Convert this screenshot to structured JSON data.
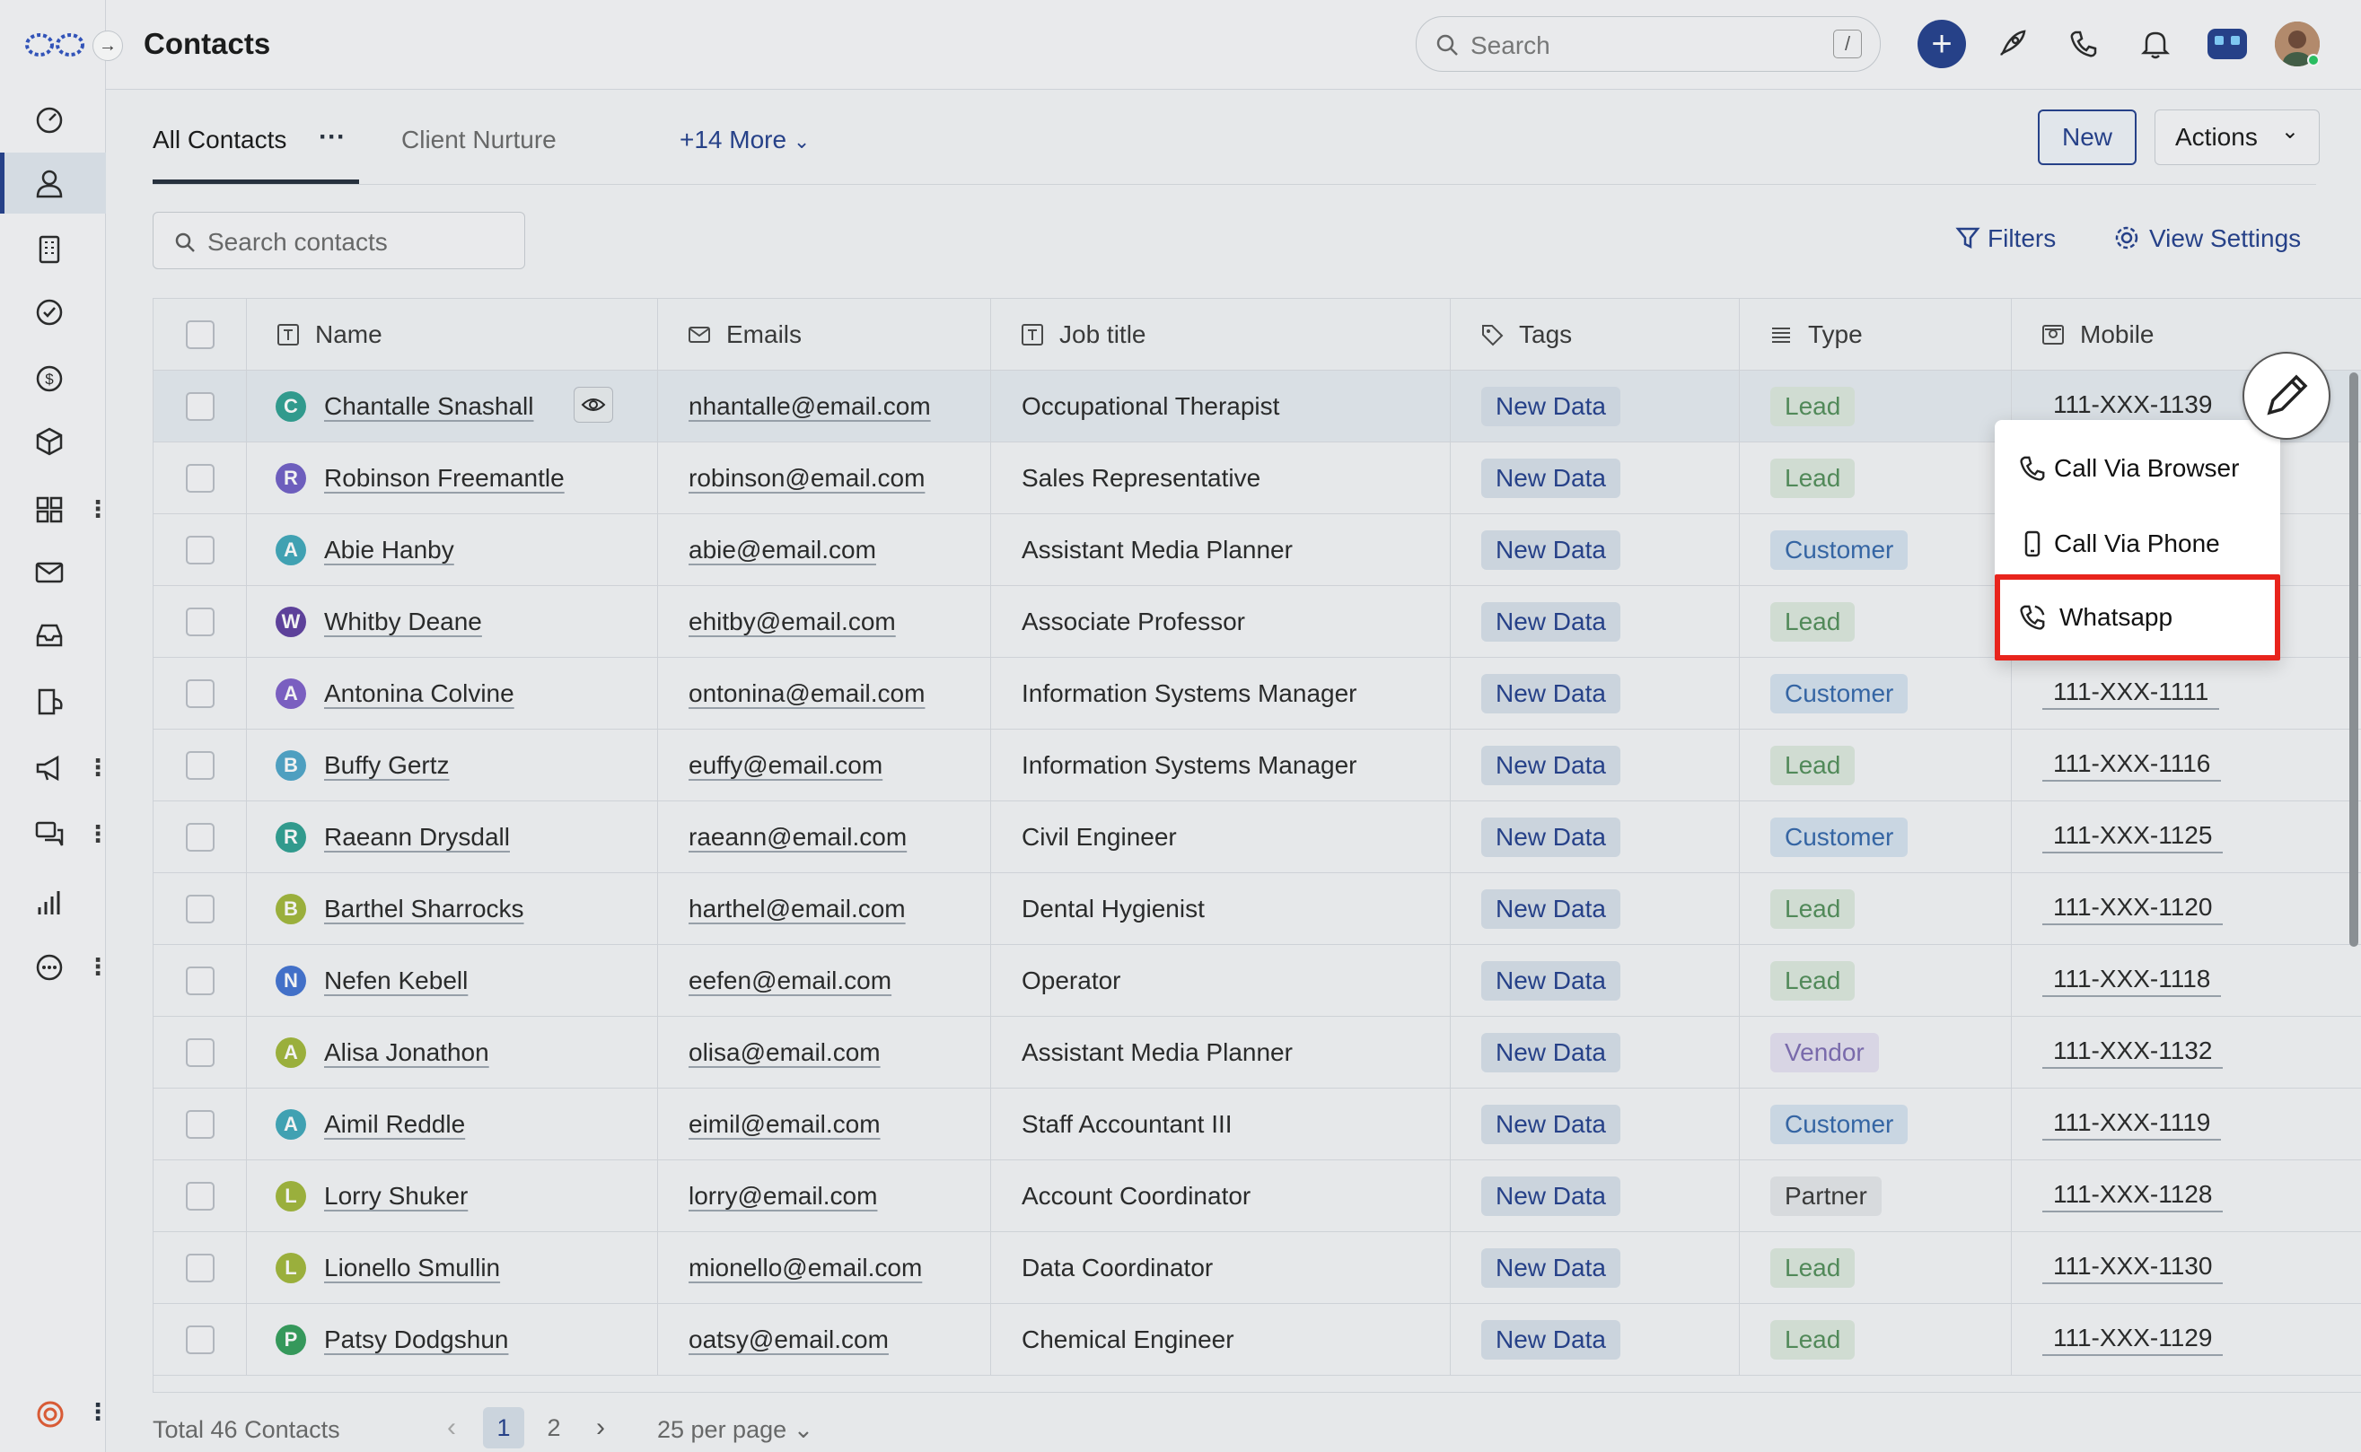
{
  "app": {
    "page_title": "Contacts"
  },
  "search": {
    "placeholder": "Search",
    "shortcut": "/"
  },
  "sidebar": {
    "items": [
      {
        "icon": "dashboard-icon"
      },
      {
        "icon": "contacts-icon",
        "active": true
      },
      {
        "icon": "building-icon"
      },
      {
        "icon": "check-circle-icon"
      },
      {
        "icon": "dollar-icon"
      },
      {
        "icon": "cube-icon"
      },
      {
        "icon": "apps-icon",
        "menu": true
      },
      {
        "icon": "mail-icon"
      },
      {
        "icon": "inbox-icon"
      },
      {
        "icon": "forms-icon"
      },
      {
        "icon": "megaphone-icon",
        "menu": true
      },
      {
        "icon": "chat-icon",
        "menu": true
      },
      {
        "icon": "reports-icon"
      },
      {
        "icon": "more-icon",
        "menu": true
      }
    ]
  },
  "tabs": {
    "all": "All Contacts",
    "client": "Client Nurture",
    "more": "+14 More"
  },
  "buttons": {
    "new": "New",
    "actions": "Actions",
    "filters": "Filters",
    "view_settings": "View Settings"
  },
  "search_contacts": {
    "placeholder": "Search contacts"
  },
  "table": {
    "headers": {
      "name": "Name",
      "emails": "Emails",
      "job": "Job title",
      "tags": "Tags",
      "type": "Type",
      "mobile": "Mobile"
    },
    "rows": [
      {
        "initial": "C",
        "color": "#2a9d8f",
        "name": "Chantalle Snashall",
        "email": "nhantalle@email.com",
        "job": "Occupational Therapist",
        "tag": "New Data",
        "type": "Lead",
        "mobile": "111-XXX-1139"
      },
      {
        "initial": "R",
        "color": "#6c5bc4",
        "name": "Robinson Freemantle",
        "email": "robinson@email.com",
        "job": "Sales Representative",
        "tag": "New Data",
        "type": "Lead",
        "mobile": ""
      },
      {
        "initial": "A",
        "color": "#3aa5b8",
        "name": "Abie Hanby",
        "email": "abie@email.com",
        "job": "Assistant Media Planner",
        "tag": "New Data",
        "type": "Customer",
        "mobile": ""
      },
      {
        "initial": "W",
        "color": "#5b3a9e",
        "name": "Whitby Deane",
        "email": "ehitby@email.com",
        "job": "Associate Professor",
        "tag": "New Data",
        "type": "Lead",
        "mobile": ""
      },
      {
        "initial": "A",
        "color": "#7b5cc8",
        "name": "Antonina Colvine",
        "email": "ontonina@email.com",
        "job": "Information Systems Manager",
        "tag": "New Data",
        "type": "Customer",
        "mobile": "111-XXX-1111"
      },
      {
        "initial": "B",
        "color": "#4aa3c8",
        "name": "Buffy Gertz",
        "email": "euffy@email.com",
        "job": "Information Systems Manager",
        "tag": "New Data",
        "type": "Lead",
        "mobile": "111-XXX-1116"
      },
      {
        "initial": "R",
        "color": "#2a9d8f",
        "name": "Raeann Drysdall",
        "email": "raeann@email.com",
        "job": "Civil Engineer",
        "tag": "New Data",
        "type": "Customer",
        "mobile": "111-XXX-1125"
      },
      {
        "initial": "B",
        "color": "#9fb535",
        "name": "Barthel Sharrocks",
        "email": "harthel@email.com",
        "job": "Dental Hygienist",
        "tag": "New Data",
        "type": "Lead",
        "mobile": "111-XXX-1120"
      },
      {
        "initial": "N",
        "color": "#3d6fd1",
        "name": "Nefen Kebell",
        "email": "eefen@email.com",
        "job": "Operator",
        "tag": "New Data",
        "type": "Lead",
        "mobile": "111-XXX-1118"
      },
      {
        "initial": "A",
        "color": "#9fb535",
        "name": "Alisa Jonathon",
        "email": "olisa@email.com",
        "job": "Assistant Media Planner",
        "tag": "New Data",
        "type": "Vendor",
        "mobile": "111-XXX-1132"
      },
      {
        "initial": "A",
        "color": "#3aa5b8",
        "name": "Aimil Reddle",
        "email": "eimil@email.com",
        "job": "Staff Accountant III",
        "tag": "New Data",
        "type": "Customer",
        "mobile": "111-XXX-1119"
      },
      {
        "initial": "L",
        "color": "#9fb535",
        "name": "Lorry Shuker",
        "email": "lorry@email.com",
        "job": "Account Coordinator",
        "tag": "New Data",
        "type": "Partner",
        "mobile": "111-XXX-1128"
      },
      {
        "initial": "L",
        "color": "#9fb535",
        "name": "Lionello Smullin",
        "email": "mionello@email.com",
        "job": "Data Coordinator",
        "tag": "New Data",
        "type": "Lead",
        "mobile": "111-XXX-1130"
      },
      {
        "initial": "P",
        "color": "#2e9b57",
        "name": "Patsy Dodgshun",
        "email": "oatsy@email.com",
        "job": "Chemical Engineer",
        "tag": "New Data",
        "type": "Lead",
        "mobile": "111-XXX-1129"
      }
    ]
  },
  "dropdown": {
    "items": [
      "Call Via Browser",
      "Call Via Phone",
      "Whatsapp"
    ]
  },
  "footer": {
    "total": "Total 46 Contacts",
    "pages": [
      "1",
      "2"
    ],
    "per_page": "25 per page"
  },
  "colors": {
    "accent": "#1e3a8a",
    "highlight": "#e8241c"
  }
}
